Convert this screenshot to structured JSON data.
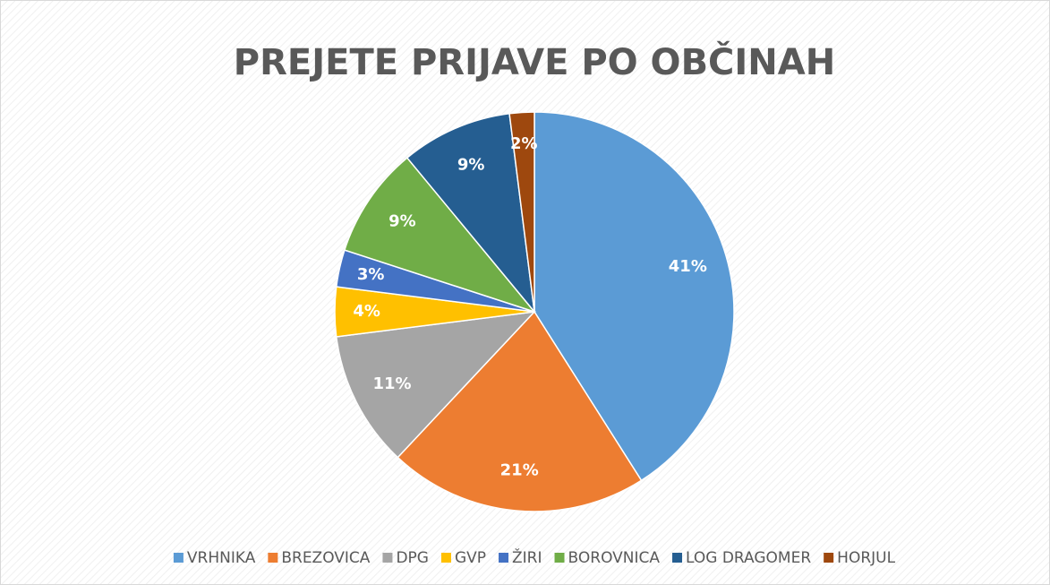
{
  "chart_data": {
    "type": "pie",
    "title": "PREJETE PRIJAVE PO OBČINAH",
    "categories": [
      "VRHNIKA",
      "BREZOVICA",
      "DPG",
      "GVP",
      "ŽIRI",
      "BOROVNICA",
      "LOG DRAGOMER",
      "HORJUL"
    ],
    "values": [
      41,
      21,
      11,
      4,
      3,
      9,
      9,
      2
    ],
    "value_labels": [
      "41%",
      "21%",
      "11%",
      "4%",
      "3%",
      "9%",
      "9%",
      "2%"
    ],
    "colors": [
      "#5b9bd5",
      "#ed7d31",
      "#a5a5a5",
      "#ffc000",
      "#4472c4",
      "#70ad47",
      "#255e91",
      "#9e480e"
    ],
    "legend": "bottom"
  }
}
